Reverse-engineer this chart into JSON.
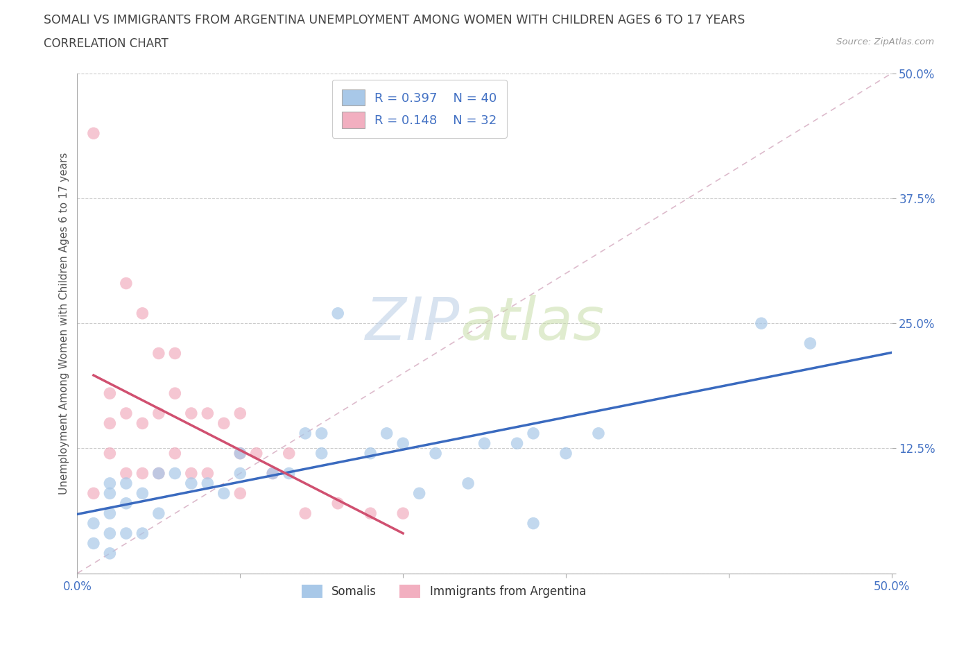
{
  "title": "SOMALI VS IMMIGRANTS FROM ARGENTINA UNEMPLOYMENT AMONG WOMEN WITH CHILDREN AGES 6 TO 17 YEARS",
  "subtitle": "CORRELATION CHART",
  "source": "Source: ZipAtlas.com",
  "ylabel": "Unemployment Among Women with Children Ages 6 to 17 years",
  "xlim": [
    0.0,
    0.5
  ],
  "ylim": [
    0.0,
    0.5
  ],
  "xtick_vals": [
    0.0,
    0.1,
    0.2,
    0.3,
    0.4,
    0.5
  ],
  "ytick_vals": [
    0.0,
    0.125,
    0.25,
    0.375,
    0.5
  ],
  "xticklabels": [
    "0.0%",
    "",
    "",
    "",
    "",
    "50.0%"
  ],
  "yticklabels": [
    "",
    "12.5%",
    "25.0%",
    "37.5%",
    "50.0%"
  ],
  "somali_color": "#a8c8e8",
  "argentina_color": "#f2afc0",
  "somali_line_color": "#3a6abf",
  "argentina_line_color": "#d05070",
  "ref_line_color": "#ddbbcc",
  "somali_R": 0.397,
  "somali_N": 40,
  "argentina_R": 0.148,
  "argentina_N": 32,
  "somali_x": [
    0.01,
    0.01,
    0.02,
    0.02,
    0.02,
    0.02,
    0.02,
    0.03,
    0.03,
    0.03,
    0.04,
    0.04,
    0.05,
    0.05,
    0.06,
    0.07,
    0.08,
    0.09,
    0.1,
    0.1,
    0.12,
    0.13,
    0.14,
    0.15,
    0.15,
    0.16,
    0.18,
    0.19,
    0.2,
    0.21,
    0.22,
    0.24,
    0.25,
    0.27,
    0.28,
    0.28,
    0.3,
    0.32,
    0.42,
    0.45
  ],
  "somali_y": [
    0.03,
    0.05,
    0.02,
    0.04,
    0.06,
    0.08,
    0.09,
    0.04,
    0.07,
    0.09,
    0.04,
    0.08,
    0.06,
    0.1,
    0.1,
    0.09,
    0.09,
    0.08,
    0.1,
    0.12,
    0.1,
    0.1,
    0.14,
    0.12,
    0.14,
    0.26,
    0.12,
    0.14,
    0.13,
    0.08,
    0.12,
    0.09,
    0.13,
    0.13,
    0.05,
    0.14,
    0.12,
    0.14,
    0.25,
    0.23
  ],
  "argentina_x": [
    0.01,
    0.01,
    0.02,
    0.02,
    0.02,
    0.03,
    0.03,
    0.03,
    0.04,
    0.04,
    0.04,
    0.05,
    0.05,
    0.05,
    0.06,
    0.06,
    0.06,
    0.07,
    0.07,
    0.08,
    0.08,
    0.09,
    0.1,
    0.1,
    0.1,
    0.11,
    0.12,
    0.13,
    0.14,
    0.16,
    0.18,
    0.2
  ],
  "argentina_y": [
    0.44,
    0.08,
    0.12,
    0.15,
    0.18,
    0.29,
    0.16,
    0.1,
    0.26,
    0.15,
    0.1,
    0.22,
    0.16,
    0.1,
    0.22,
    0.18,
    0.12,
    0.16,
    0.1,
    0.16,
    0.1,
    0.15,
    0.16,
    0.12,
    0.08,
    0.12,
    0.1,
    0.12,
    0.06,
    0.07,
    0.06,
    0.06
  ],
  "watermark_zip": "ZIP",
  "watermark_atlas": "atlas",
  "background": "#ffffff",
  "grid_color": "#cccccc",
  "title_color": "#444444",
  "tick_color": "#4472c4",
  "axis_color": "#aaaaaa",
  "legend_text_color": "#4472c4"
}
